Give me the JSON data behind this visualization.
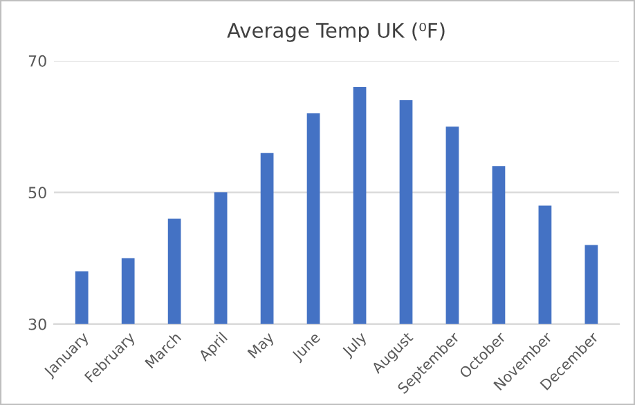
{
  "chart_data": {
    "type": "bar",
    "title": "Average Temp UK (⁰F)",
    "categories": [
      "January",
      "February",
      "March",
      "April",
      "May",
      "June",
      "July",
      "August",
      "September",
      "October",
      "November",
      "December"
    ],
    "values": [
      38,
      40,
      46,
      50,
      56,
      62,
      66,
      64,
      60,
      54,
      48,
      42
    ],
    "color": "#4472c4",
    "ylim": [
      30,
      70
    ],
    "yticks": [
      30,
      50,
      70
    ],
    "grid": "y"
  }
}
